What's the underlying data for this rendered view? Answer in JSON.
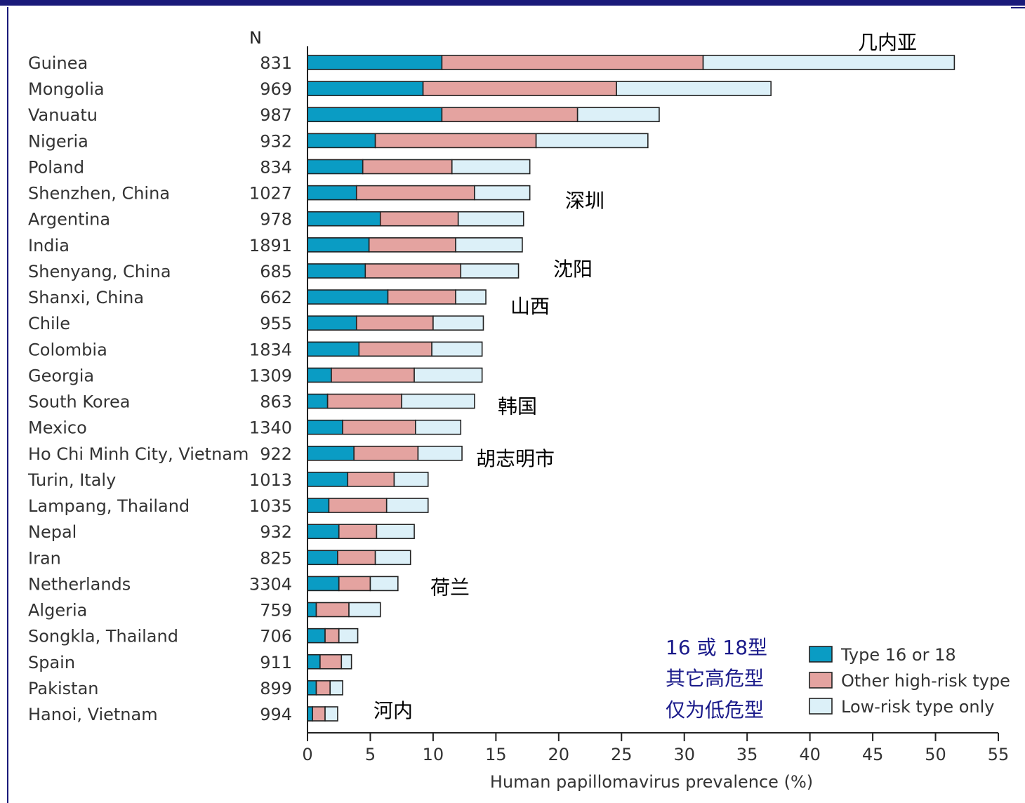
{
  "colors": {
    "type16_18": "#0a9cc4",
    "other_high_risk": "#e4a3a0",
    "low_risk": "#dcf0f8",
    "border": "#222222",
    "chinese_blue": "#1a1a8a",
    "frame": "#1a1a7a"
  },
  "chart_data": {
    "type": "bar",
    "orientation": "horizontal",
    "stacked": true,
    "n_header": "N",
    "categories": [
      "Guinea",
      "Mongolia",
      "Vanuatu",
      "Nigeria",
      "Poland",
      "Shenzhen, China",
      "Argentina",
      "India",
      "Shenyang, China",
      "Shanxi, China",
      "Chile",
      "Colombia",
      "Georgia",
      "South Korea",
      "Mexico",
      "Ho Chi Minh City, Vietnam",
      "Turin, Italy",
      "Lampang, Thailand",
      "Nepal",
      "Iran",
      "Netherlands",
      "Algeria",
      "Songkla, Thailand",
      "Spain",
      "Pakistan",
      "Hanoi, Vietnam"
    ],
    "n": [
      "831",
      "969",
      "987",
      "932",
      "834",
      "1027",
      "978",
      "1891",
      "685",
      "662",
      "955",
      "1834",
      "1309",
      "863",
      "1340",
      "922",
      "1013",
      "1035",
      "932",
      "825",
      "3304",
      "759",
      "706",
      "911",
      "899",
      "994"
    ],
    "series": [
      {
        "name": "Type 16 or 18",
        "values": [
          10.7,
          9.2,
          10.7,
          5.4,
          4.4,
          3.9,
          5.8,
          4.9,
          4.6,
          6.4,
          3.9,
          4.1,
          1.9,
          1.6,
          2.8,
          3.7,
          3.2,
          1.7,
          2.5,
          2.4,
          2.5,
          0.7,
          1.4,
          1.0,
          0.7,
          0.4
        ]
      },
      {
        "name": "Other high-risk type",
        "values": [
          20.8,
          15.4,
          10.8,
          12.8,
          7.1,
          9.4,
          6.2,
          6.9,
          7.6,
          5.4,
          6.1,
          5.8,
          6.6,
          5.9,
          5.8,
          5.1,
          3.7,
          4.6,
          3.0,
          3.0,
          2.5,
          2.6,
          1.1,
          1.7,
          1.1,
          1.0
        ]
      },
      {
        "name": "Low-risk type only",
        "values": [
          20.0,
          12.3,
          6.5,
          8.9,
          6.2,
          4.4,
          5.2,
          5.3,
          4.6,
          2.4,
          4.0,
          4.0,
          5.4,
          5.8,
          3.6,
          3.5,
          2.7,
          3.3,
          3.0,
          2.8,
          2.2,
          2.5,
          1.5,
          0.8,
          1.0,
          1.0
        ]
      }
    ],
    "xlabel": "Human papillomavirus prevalence (%)",
    "xlim": [
      0,
      55
    ],
    "xticks": [
      "0",
      "5",
      "10",
      "15",
      "20",
      "25",
      "30",
      "35",
      "40",
      "45",
      "50",
      "55"
    ],
    "legend_position": "bottom-right",
    "grid": false,
    "annotations": [
      {
        "row": 0,
        "text": "几内亚"
      },
      {
        "row": 5,
        "text": "深圳"
      },
      {
        "row": 8,
        "text": "沈阳"
      },
      {
        "row": 9,
        "text": "山西"
      },
      {
        "row": 13,
        "text": "韩国"
      },
      {
        "row": 15,
        "text": "胡志明市"
      },
      {
        "row": 20,
        "text": "荷兰"
      },
      {
        "row": 25,
        "text": "河内"
      }
    ],
    "legend_chinese": [
      "16 或 18型",
      "其它高危型",
      "仅为低危型"
    ]
  }
}
